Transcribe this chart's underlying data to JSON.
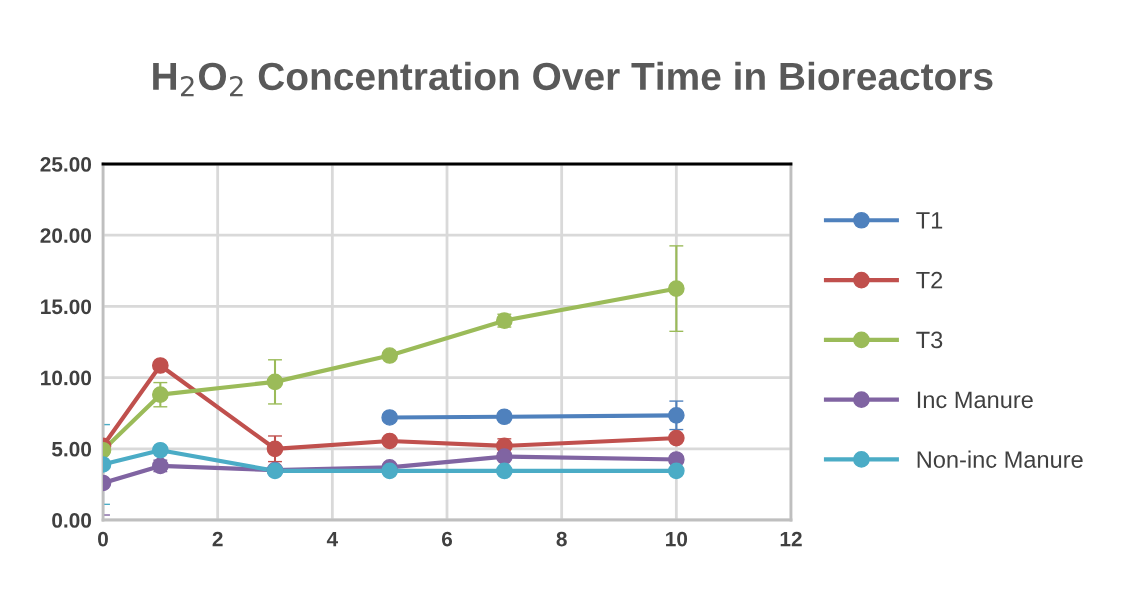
{
  "chart_data": {
    "type": "line",
    "title": "H$_{2}$O$_{2}$ Concentration Over Time in Bioreactors",
    "series": [
      {
        "name": "T1",
        "color": "#4f81bd",
        "x": [
          5,
          7,
          10
        ],
        "values": [
          7.2,
          7.25,
          7.35
        ],
        "errors": [
          null,
          null,
          1.0
        ]
      },
      {
        "name": "T2",
        "color": "#c0504d",
        "x": [
          0,
          1,
          3,
          5,
          7,
          10
        ],
        "values": [
          5.2,
          10.85,
          5.0,
          5.55,
          5.2,
          5.75
        ],
        "errors": [
          null,
          null,
          0.9,
          null,
          0.5,
          null
        ]
      },
      {
        "name": "T3",
        "color": "#9bbb59",
        "x": [
          0,
          1,
          3,
          5,
          7,
          10
        ],
        "values": [
          4.9,
          8.8,
          9.7,
          11.55,
          14.0,
          16.25
        ],
        "errors": [
          null,
          0.85,
          1.55,
          null,
          0.45,
          3.0
        ]
      },
      {
        "name": "Inc Manure",
        "color": "#8064a2",
        "x": [
          0,
          1,
          3,
          5,
          7,
          10
        ],
        "values": [
          2.6,
          3.8,
          3.5,
          3.7,
          4.45,
          4.25
        ],
        "errors": [
          2.25,
          0.4,
          null,
          null,
          null,
          null
        ]
      },
      {
        "name": "Non-inc Manure",
        "color": "#4bacc6",
        "x": [
          0,
          1,
          3,
          5,
          7,
          10
        ],
        "values": [
          3.9,
          4.9,
          3.45,
          3.45,
          3.45,
          3.45
        ],
        "errors": [
          2.8,
          null,
          null,
          null,
          null,
          null
        ]
      }
    ],
    "xlim": [
      0,
      12
    ],
    "xticks": [
      0,
      2,
      4,
      6,
      8,
      10,
      12
    ],
    "ylim": [
      0,
      25
    ],
    "yticks": [
      {
        "value": 0,
        "label": "0.00"
      },
      {
        "value": 5,
        "label": "5.00"
      },
      {
        "value": 10,
        "label": "10.00"
      },
      {
        "value": 15,
        "label": "15.00"
      },
      {
        "value": 20,
        "label": "20.00"
      },
      {
        "value": 25,
        "label": "25.00"
      }
    ],
    "grid": true,
    "legend": "right",
    "marker": "circle",
    "line_style": "solid"
  }
}
